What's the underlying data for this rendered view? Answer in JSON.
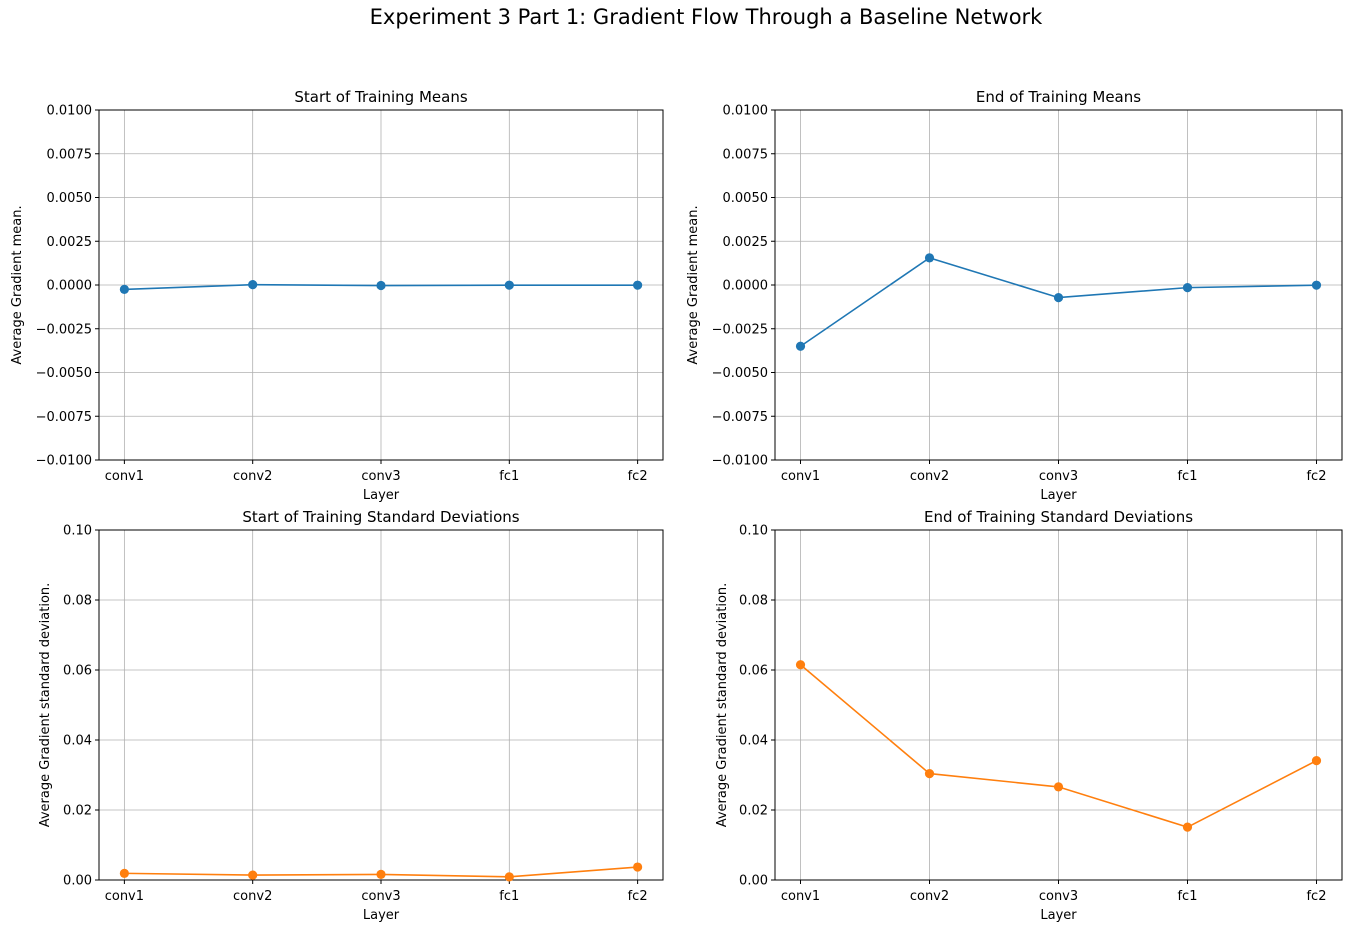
{
  "figure": {
    "title": "Experiment 3 Part 1: Gradient Flow Through a Baseline Network"
  },
  "colors": {
    "mean_series": "#1f77b4",
    "std_series": "#ff7f0e",
    "grid": "#b0b0b0",
    "axes": "#000000"
  },
  "chart_data": [
    {
      "id": "start-means",
      "type": "line",
      "title": "Start of Training Means",
      "xlabel": "Layer",
      "ylabel": "Average Gradient mean.",
      "categories": [
        "conv1",
        "conv2",
        "conv3",
        "fc1",
        "fc2"
      ],
      "values": [
        -0.00025,
        2e-05,
        -3e-05,
        -1e-05,
        -1e-05
      ],
      "ylim": [
        -0.01,
        0.01
      ],
      "yticks": [
        -0.01,
        -0.0075,
        -0.005,
        -0.0025,
        0.0,
        0.0025,
        0.005,
        0.0075,
        0.01
      ],
      "ytick_labels": [
        "−0.0100",
        "−0.0075",
        "−0.0050",
        "−0.0025",
        "0.0000",
        "0.0025",
        "0.0050",
        "0.0075",
        "0.0100"
      ],
      "grid": true,
      "marker": "circle",
      "color_key": "mean_series"
    },
    {
      "id": "end-means",
      "type": "line",
      "title": "End of Training Means",
      "xlabel": "Layer",
      "ylabel": "Average Gradient mean.",
      "categories": [
        "conv1",
        "conv2",
        "conv3",
        "fc1",
        "fc2"
      ],
      "values": [
        -0.0035,
        0.00155,
        -0.00072,
        -0.00015,
        -1e-05
      ],
      "ylim": [
        -0.01,
        0.01
      ],
      "yticks": [
        -0.01,
        -0.0075,
        -0.005,
        -0.0025,
        0.0,
        0.0025,
        0.005,
        0.0075,
        0.01
      ],
      "ytick_labels": [
        "−0.0100",
        "−0.0075",
        "−0.0050",
        "−0.0025",
        "0.0000",
        "0.0025",
        "0.0050",
        "0.0075",
        "0.0100"
      ],
      "grid": true,
      "marker": "circle",
      "color_key": "mean_series"
    },
    {
      "id": "start-stds",
      "type": "line",
      "title": "Start of Training Standard Deviations",
      "xlabel": "Layer",
      "ylabel": "Average Gradient standard deviation.",
      "categories": [
        "conv1",
        "conv2",
        "conv3",
        "fc1",
        "fc2"
      ],
      "values": [
        0.0019,
        0.0014,
        0.0016,
        0.0009,
        0.0037
      ],
      "ylim": [
        0,
        0.1
      ],
      "yticks": [
        0.0,
        0.02,
        0.04,
        0.06,
        0.08,
        0.1
      ],
      "ytick_labels": [
        "0.00",
        "0.02",
        "0.04",
        "0.06",
        "0.08",
        "0.10"
      ],
      "grid": true,
      "marker": "circle",
      "color_key": "std_series"
    },
    {
      "id": "end-stds",
      "type": "line",
      "title": "End of Training Standard Deviations",
      "xlabel": "Layer",
      "ylabel": "Average Gradient standard deviation.",
      "categories": [
        "conv1",
        "conv2",
        "conv3",
        "fc1",
        "fc2"
      ],
      "values": [
        0.0615,
        0.0304,
        0.0266,
        0.0151,
        0.0341
      ],
      "ylim": [
        0,
        0.1
      ],
      "yticks": [
        0.0,
        0.02,
        0.04,
        0.06,
        0.08,
        0.1
      ],
      "ytick_labels": [
        "0.00",
        "0.02",
        "0.04",
        "0.06",
        "0.08",
        "0.10"
      ],
      "grid": true,
      "marker": "circle",
      "color_key": "std_series"
    }
  ]
}
